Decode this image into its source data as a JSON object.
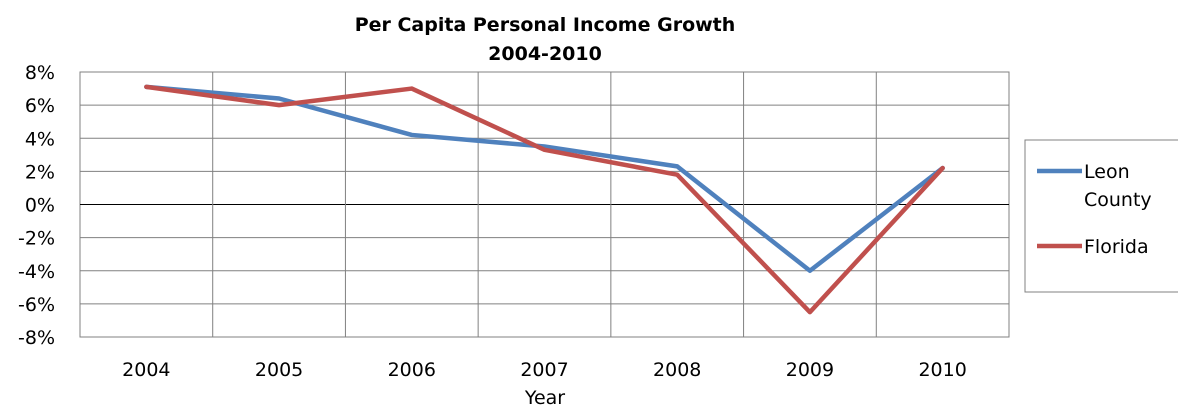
{
  "chart_data": {
    "type": "line",
    "title_lines": [
      "Per Capita Personal Income Growth",
      "2004-2010"
    ],
    "xlabel": "Year",
    "ylabel": "",
    "categories": [
      "2004",
      "2005",
      "2006",
      "2007",
      "2008",
      "2009",
      "2010"
    ],
    "ylim": [
      -8,
      8
    ],
    "y_ticks": [
      "8%",
      "6%",
      "4%",
      "2%",
      "0%",
      "-2%",
      "-4%",
      "-6%",
      "-8%"
    ],
    "y_tick_values": [
      8,
      6,
      4,
      2,
      0,
      -2,
      -4,
      -6,
      -8
    ],
    "grid": true,
    "legend_position": "right",
    "series": [
      {
        "name": "Leon County",
        "legend_lines": [
          "Leon",
          "County"
        ],
        "color": "#4F81BD",
        "values": [
          7.1,
          6.4,
          4.2,
          3.5,
          2.3,
          -4.0,
          2.2
        ]
      },
      {
        "name": "Florida",
        "legend_lines": [
          "Florida"
        ],
        "color": "#C0504D",
        "values": [
          7.1,
          6.0,
          7.0,
          3.3,
          1.8,
          -6.5,
          2.2
        ]
      }
    ]
  }
}
